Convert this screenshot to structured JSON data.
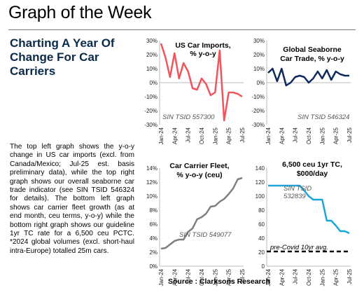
{
  "page": {
    "title": "Graph of the Week",
    "subtitle": "Charting A Year Of Change For Car Carriers",
    "body": "The top left graph shows the y-o-y change in US car imports (excl. from Canada/Mexico; Jul-25 est. basis preliminary data), while the top right graph shows our overall seaborne car trade indicator (see SIN TSID 546324 for details). The bottom left graph shows car carrier fleet growth (as at end month, ceu terms, y-o-y) while the bottom right graph shows our guideline 1yr TC rate for a 6,500 ceu PCTC. *2024 global volumes (excl. short-haul intra-Europe) totalled 25m cars.",
    "source": "Source : Clarksons Research"
  },
  "chart_data": [
    {
      "id": "us-imports",
      "type": "line",
      "title": [
        "US Car Imports,",
        "% y-o-y"
      ],
      "note": "SIN TSID 557300",
      "color": "#f0545c",
      "x": [
        "Jan-24",
        "Feb-24",
        "Mar-24",
        "Apr-24",
        "May-24",
        "Jun-24",
        "Jul-24",
        "Aug-24",
        "Sep-24",
        "Oct-24",
        "Nov-24",
        "Dec-24",
        "Jan-25",
        "Feb-25",
        "Mar-25",
        "Apr-25",
        "May-25",
        "Jun-25",
        "Jul-25"
      ],
      "tick_labels": [
        "Jan-24",
        "Apr-24",
        "Jul-24",
        "Oct-24",
        "Jan-25",
        "Apr-25",
        "Jul-25"
      ],
      "values": [
        28,
        18,
        4,
        21,
        3,
        14,
        8,
        -4,
        -5,
        3,
        -1,
        -9,
        -7,
        23,
        -27,
        -7,
        -7,
        -8,
        -10
      ],
      "yticks": [
        30,
        20,
        10,
        0,
        -10,
        -20,
        -30
      ],
      "ytick_labels": [
        "30%",
        "20%",
        "10%",
        "0%",
        "-10%",
        "-20%",
        "-30%"
      ],
      "ylim": [
        -30,
        30
      ]
    },
    {
      "id": "seaborne-trade",
      "type": "line",
      "title": [
        "Global Seaborne",
        "Car Trade, % y-o-y"
      ],
      "note": "SIN TSID 546324",
      "color": "#0e2a5c",
      "x": [
        "Jan-24",
        "Feb-24",
        "Mar-24",
        "Apr-24",
        "May-24",
        "Jun-24",
        "Jul-24",
        "Aug-24",
        "Sep-24",
        "Oct-24",
        "Nov-24",
        "Dec-24",
        "Jan-25",
        "Feb-25",
        "Mar-25",
        "Apr-25",
        "May-25",
        "Jun-25",
        "Jul-25"
      ],
      "tick_labels": [
        "Jan-24",
        "Apr-24",
        "Jul-24",
        "Oct-24",
        "Jan-25",
        "Apr-25",
        "Jul-25"
      ],
      "values": [
        7,
        10,
        1,
        10,
        -2,
        0,
        4,
        5,
        4,
        0,
        3,
        8,
        3,
        9,
        2,
        8,
        6,
        5,
        5
      ],
      "yticks": [
        30,
        20,
        10,
        0,
        -10,
        -20,
        -30
      ],
      "ytick_labels": [
        "30%",
        "20%",
        "10%",
        "0%",
        "-10%",
        "-20%",
        "-30%"
      ],
      "ylim": [
        -30,
        30
      ]
    },
    {
      "id": "fleet-growth",
      "type": "line",
      "title": [
        "Car Carrier Fleet,",
        "% y-o-y (ceu)"
      ],
      "note": "SIN TSID 549077",
      "color": "#7f7f7f",
      "x": [
        "Jan-24",
        "Feb-24",
        "Mar-24",
        "Apr-24",
        "May-24",
        "Jun-24",
        "Jul-24",
        "Aug-24",
        "Sep-24",
        "Oct-24",
        "Nov-24",
        "Dec-24",
        "Jan-25",
        "Feb-25",
        "Mar-25",
        "Apr-25",
        "May-25",
        "Jun-25",
        "Jul-25"
      ],
      "tick_labels": [
        "Jan-24",
        "Apr-24",
        "Jul-24",
        "Oct-24",
        "Jan-25",
        "Apr-25",
        "Jul-25"
      ],
      "values": [
        2.5,
        2.6,
        3.1,
        3.6,
        3.8,
        3.8,
        4.9,
        5.4,
        6.7,
        7.0,
        7.5,
        8.5,
        8.6,
        9.2,
        9.6,
        10.3,
        11.1,
        12.4,
        12.6
      ],
      "yticks": [
        14,
        12,
        10,
        8,
        6,
        4,
        2,
        0
      ],
      "ytick_labels": [
        "14%",
        "12%",
        "10%",
        "8%",
        "6%",
        "4%",
        "2%",
        "0%"
      ],
      "ylim": [
        0,
        14
      ]
    },
    {
      "id": "tc-rate",
      "type": "line",
      "title": [
        "6,500 ceu 1yr TC,",
        "$000/day"
      ],
      "note": [
        "SIN TSID",
        "532839"
      ],
      "color": "#1aa6d8",
      "x": [
        "Jan-24",
        "Feb-24",
        "Mar-24",
        "Apr-24",
        "May-24",
        "Jun-24",
        "Jul-24",
        "Aug-24",
        "Sep-24",
        "Oct-24",
        "Nov-24",
        "Dec-24",
        "Jan-25",
        "Feb-25",
        "Mar-25",
        "Apr-25",
        "May-25",
        "Jun-25",
        "Jul-25"
      ],
      "tick_labels": [
        "Jan-24",
        "Apr-24",
        "Jul-24",
        "Oct-24",
        "Jan-25",
        "Apr-25",
        "Jul-25"
      ],
      "values": [
        115,
        115,
        115,
        115,
        115,
        115,
        115,
        115,
        108,
        100,
        95,
        95,
        95,
        65,
        65,
        58,
        50,
        50,
        47
      ],
      "baseline": {
        "label": "pre-Covid 10yr avg.",
        "value": 21
      },
      "yticks": [
        140,
        120,
        100,
        80,
        60,
        40,
        20,
        0
      ],
      "ytick_labels": [
        "140",
        "120",
        "100",
        "80",
        "60",
        "40",
        "20",
        "0"
      ],
      "ylim": [
        0,
        140
      ]
    }
  ]
}
